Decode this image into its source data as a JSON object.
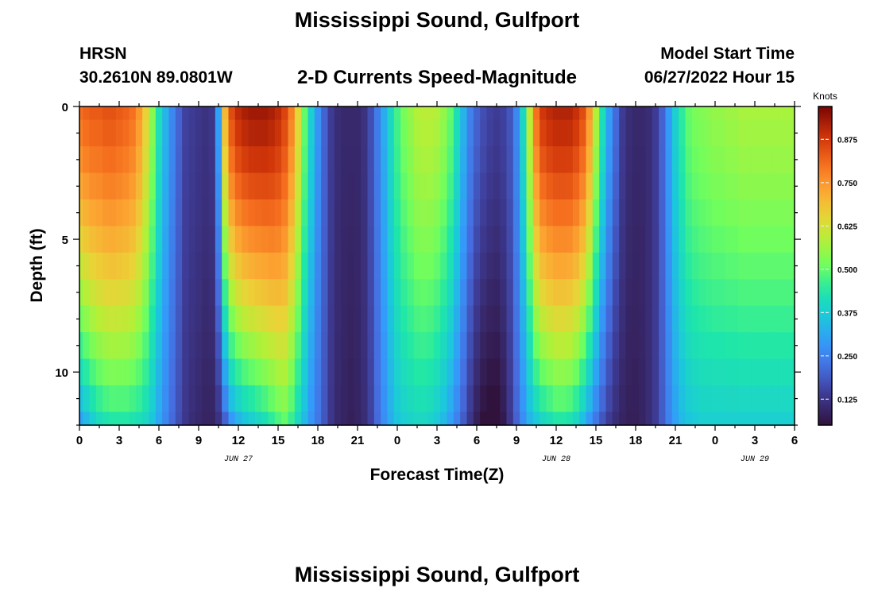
{
  "header": {
    "title": "Mississippi Sound, Gulfport",
    "station_id": "HRSN",
    "station_coords": "30.2610N  89.0801W",
    "subtitle": "2-D Currents Speed-Magnitude",
    "model_label": "Model Start Time",
    "model_time": "06/27/2022 Hour 15"
  },
  "footer": {
    "next_title": "Mississippi Sound, Gulfport"
  },
  "chart_data": {
    "type": "heatmap",
    "xlabel": "Forecast Time(Z)",
    "ylabel": "Depth (ft)",
    "x_range_hours": [
      0,
      54
    ],
    "y_range_ft": [
      0,
      12
    ],
    "x_tick_labels": [
      "0",
      "3",
      "6",
      "9",
      "12",
      "15",
      "18",
      "21",
      "0",
      "3",
      "6",
      "9",
      "12",
      "15",
      "18",
      "21",
      "0",
      "3",
      "6"
    ],
    "y_ticks": [
      0,
      5,
      10
    ],
    "date_labels": [
      {
        "text": "JUN 27",
        "hour": 12
      },
      {
        "text": "JUN 28",
        "hour": 36
      },
      {
        "text": "JUN 29",
        "hour": 51
      }
    ],
    "colorbar": {
      "label": "Knots",
      "range": [
        0.05,
        0.97
      ],
      "ticks": [
        "0.125",
        "0.250",
        "0.375",
        "0.500",
        "0.625",
        "0.750",
        "0.875"
      ]
    },
    "depth_levels_ft": [
      0,
      1,
      2,
      3,
      4,
      5,
      6,
      7,
      8,
      9,
      10,
      11,
      12
    ],
    "time_hours": [
      0,
      0.5,
      1,
      1.5,
      2,
      2.5,
      3,
      3.5,
      4,
      4.5,
      5,
      5.5,
      6,
      6.5,
      7,
      7.5,
      8,
      8.5,
      9,
      9.5,
      10,
      10.5,
      11,
      11.5,
      12,
      12.5,
      13,
      13.5,
      14,
      14.5,
      15,
      15.5,
      16,
      16.5,
      17,
      17.5,
      18,
      18.5,
      19,
      19.5,
      20,
      20.5,
      21,
      21.5,
      22,
      22.5,
      23,
      23.5,
      24,
      24.5,
      25,
      25.5,
      26,
      26.5,
      27,
      27.5,
      28,
      28.5,
      29,
      29.5,
      30,
      30.5,
      31,
      31.5,
      32,
      32.5,
      33,
      33.5,
      34,
      34.5,
      35,
      35.5,
      36,
      36.5,
      37,
      37.5,
      38,
      38.5,
      39,
      39.5,
      40,
      40.5,
      41,
      41.5,
      42,
      42.5,
      43,
      43.5,
      44,
      44.5,
      45,
      45.5,
      46,
      46.5,
      47,
      47.5,
      48,
      48.5,
      49,
      49.5,
      50,
      50.5,
      51,
      51.5,
      52,
      52.5,
      53,
      53.5,
      54
    ],
    "surface_speed_kn": [
      0.8,
      0.82,
      0.83,
      0.83,
      0.84,
      0.84,
      0.83,
      0.82,
      0.8,
      0.75,
      0.66,
      0.54,
      0.42,
      0.33,
      0.26,
      0.2,
      0.15,
      0.14,
      0.13,
      0.12,
      0.13,
      0.3,
      0.7,
      0.85,
      0.9,
      0.92,
      0.93,
      0.93,
      0.93,
      0.92,
      0.9,
      0.86,
      0.78,
      0.65,
      0.5,
      0.38,
      0.28,
      0.2,
      0.14,
      0.11,
      0.1,
      0.1,
      0.1,
      0.12,
      0.17,
      0.24,
      0.32,
      0.4,
      0.47,
      0.52,
      0.55,
      0.58,
      0.59,
      0.59,
      0.58,
      0.55,
      0.5,
      0.42,
      0.33,
      0.25,
      0.2,
      0.17,
      0.15,
      0.14,
      0.15,
      0.18,
      0.26,
      0.4,
      0.6,
      0.8,
      0.88,
      0.9,
      0.91,
      0.91,
      0.91,
      0.89,
      0.85,
      0.75,
      0.58,
      0.42,
      0.3,
      0.21,
      0.14,
      0.11,
      0.1,
      0.1,
      0.11,
      0.14,
      0.2,
      0.29,
      0.38,
      0.45,
      0.5,
      0.52,
      0.53,
      0.54,
      0.55,
      0.55,
      0.56,
      0.56,
      0.57,
      0.57,
      0.57,
      0.57,
      0.57,
      0.57,
      0.57,
      0.57,
      0.57
    ],
    "bottom_speed_kn": [
      0.3,
      0.34,
      0.38,
      0.41,
      0.43,
      0.44,
      0.44,
      0.44,
      0.43,
      0.42,
      0.4,
      0.36,
      0.31,
      0.26,
      0.21,
      0.17,
      0.13,
      0.11,
      0.1,
      0.09,
      0.09,
      0.12,
      0.2,
      0.29,
      0.33,
      0.36,
      0.38,
      0.4,
      0.42,
      0.45,
      0.48,
      0.5,
      0.46,
      0.4,
      0.34,
      0.28,
      0.23,
      0.18,
      0.13,
      0.1,
      0.09,
      0.08,
      0.09,
      0.11,
      0.15,
      0.21,
      0.27,
      0.32,
      0.36,
      0.38,
      0.39,
      0.4,
      0.4,
      0.39,
      0.37,
      0.34,
      0.3,
      0.25,
      0.19,
      0.13,
      0.08,
      0.05,
      0.04,
      0.04,
      0.07,
      0.13,
      0.2,
      0.27,
      0.33,
      0.37,
      0.4,
      0.42,
      0.44,
      0.44,
      0.43,
      0.4,
      0.35,
      0.29,
      0.23,
      0.18,
      0.14,
      0.11,
      0.09,
      0.08,
      0.08,
      0.09,
      0.11,
      0.14,
      0.19,
      0.25,
      0.3,
      0.34,
      0.36,
      0.37,
      0.38,
      0.38,
      0.38,
      0.38,
      0.38,
      0.38,
      0.38,
      0.38,
      0.38,
      0.38,
      0.38,
      0.38,
      0.38,
      0.38,
      0.38
    ]
  }
}
